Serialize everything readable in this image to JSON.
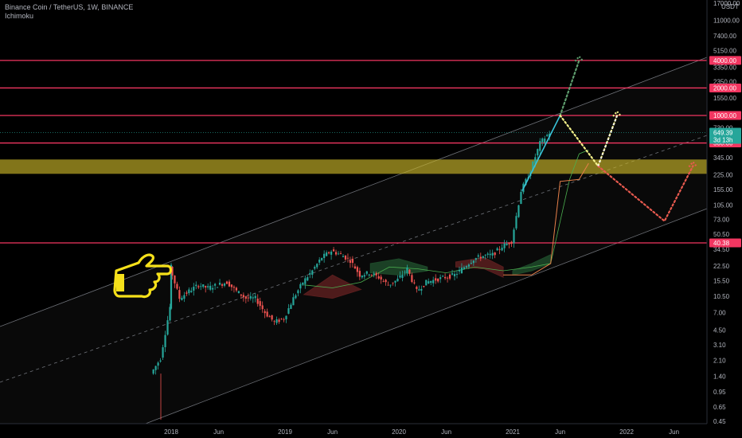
{
  "header": {
    "symbol_line": "Binance Coin / TetherUS, 1W, BINANCE",
    "indicator": "Ichimoku"
  },
  "colors": {
    "up": "#26a69a",
    "down": "#ef5350",
    "level_line": "#f23661",
    "zone": "#c8b428",
    "projection_green": "#5e9e6e",
    "projection_white": "#f0f0f0",
    "projection_yellow": "#f3f08a",
    "projection_red": "#e85a4f",
    "arrow_blue": "#39c3d8",
    "cloud_red": "#5a1e1e",
    "cloud_green": "#1e4a2a",
    "hand": "#f5e01a"
  },
  "price_axis": {
    "currency": "USDT",
    "ticks": [
      "17000.00",
      "11000.00",
      "7400.00",
      "5150.00",
      "3350.00",
      "2350.00",
      "1550.00",
      "730.00",
      "345.00",
      "225.00",
      "155.00",
      "105.00",
      "73.00",
      "50.50",
      "34.50",
      "22.50",
      "15.50",
      "10.50",
      "7.00",
      "4.50",
      "3.10",
      "2.10",
      "1.40",
      "0.95",
      "0.65",
      "0.45"
    ],
    "current_price": "649.39",
    "countdown": "3d 13h"
  },
  "time_axis": {
    "labels": [
      "2018",
      "Jun",
      "2019",
      "Jun",
      "2020",
      "Jun",
      "2021",
      "Jun",
      "2022",
      "Jun"
    ]
  },
  "levels": [
    {
      "label": "4000.00",
      "value": 4000
    },
    {
      "label": "2000.00",
      "value": 2000
    },
    {
      "label": "1000.00",
      "value": 1000
    },
    {
      "label": "500.00",
      "value": 500
    },
    {
      "label": "40.38",
      "value": 40.38
    }
  ],
  "chart_data": {
    "type": "candlestick",
    "title": "Binance Coin / TetherUS, 1W, BINANCE",
    "y_scale": "log",
    "ylim": [
      0.45,
      17000
    ],
    "xlim": [
      "2017-11",
      "2022-10"
    ],
    "grid": false,
    "horizontal_levels": [
      4000,
      2000,
      1000,
      500,
      40.38
    ],
    "resistance_zone": [
      230,
      330
    ],
    "price_path_close": [
      [
        "2017-11",
        1.5
      ],
      [
        "2017-12",
        2.2
      ],
      [
        "2018-01",
        8
      ],
      [
        "2018-01",
        22
      ],
      [
        "2018-02",
        10
      ],
      [
        "2018-03",
        12
      ],
      [
        "2018-04",
        14
      ],
      [
        "2018-05",
        13
      ],
      [
        "2018-06",
        14
      ],
      [
        "2018-07",
        15
      ],
      [
        "2018-08",
        12
      ],
      [
        "2018-09",
        10
      ],
      [
        "2018-10",
        10
      ],
      [
        "2018-11",
        7
      ],
      [
        "2018-12",
        5.5
      ],
      [
        "2019-01",
        6
      ],
      [
        "2019-02",
        10
      ],
      [
        "2019-03",
        15
      ],
      [
        "2019-04",
        20
      ],
      [
        "2019-05",
        28
      ],
      [
        "2019-06",
        33
      ],
      [
        "2019-07",
        30
      ],
      [
        "2019-08",
        26
      ],
      [
        "2019-09",
        18
      ],
      [
        "2019-10",
        19
      ],
      [
        "2019-11",
        17
      ],
      [
        "2019-12",
        14
      ],
      [
        "2020-01",
        16
      ],
      [
        "2020-02",
        21
      ],
      [
        "2020-03",
        12
      ],
      [
        "2020-04",
        15
      ],
      [
        "2020-05",
        16
      ],
      [
        "2020-06",
        17
      ],
      [
        "2020-07",
        18
      ],
      [
        "2020-08",
        22
      ],
      [
        "2020-09",
        27
      ],
      [
        "2020-10",
        29
      ],
      [
        "2020-11",
        30
      ],
      [
        "2020-12",
        37
      ],
      [
        "2021-01",
        42
      ],
      [
        "2021-02",
        150
      ],
      [
        "2021-03",
        250
      ],
      [
        "2021-04",
        500
      ],
      [
        "2021-05",
        649.39
      ]
    ],
    "projections": [
      {
        "name": "",
        "points": [
          [
            "2021-06",
            1000
          ],
          [
            "2021-08",
            4000
          ]
        ]
      },
      {
        "name": "",
        "points": [
          [
            "2021-06",
            1000
          ],
          [
            "2021-10",
            280
          ],
          [
            "2021-12",
            1000
          ]
        ]
      },
      {
        "name": "",
        "points": [
          [
            "2021-10",
            280
          ],
          [
            "2022-05",
            70
          ],
          [
            "2022-08",
            280
          ]
        ]
      }
    ]
  }
}
